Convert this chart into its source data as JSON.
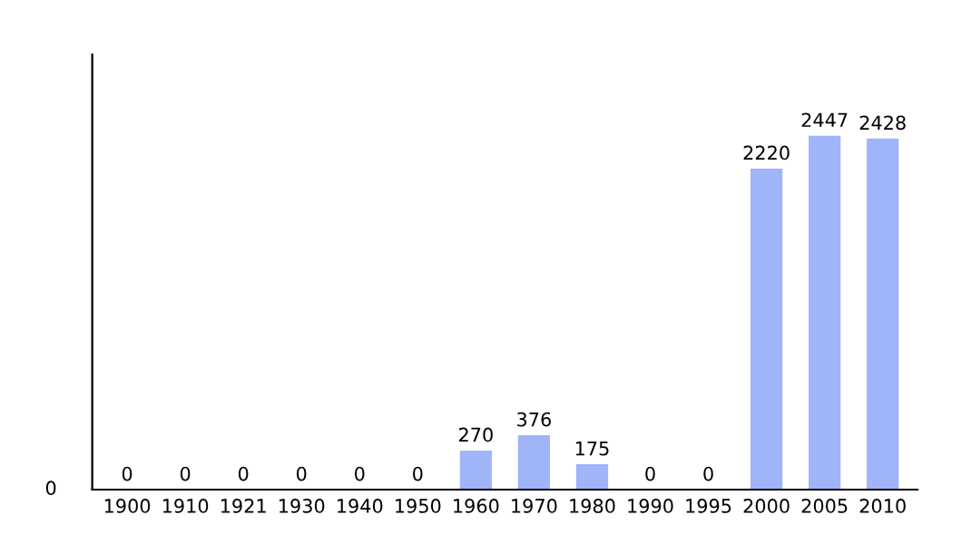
{
  "chart_data": {
    "type": "bar",
    "categories": [
      "1900",
      "1910",
      "1921",
      "1930",
      "1940",
      "1950",
      "1960",
      "1970",
      "1980",
      "1990",
      "1995",
      "2000",
      "2005",
      "2010"
    ],
    "values": [
      0,
      0,
      0,
      0,
      0,
      0,
      270,
      376,
      175,
      0,
      0,
      2220,
      2447,
      2428
    ],
    "data_labels": true,
    "annotations": [
      "0"
    ],
    "color": "#a0b4fa"
  }
}
